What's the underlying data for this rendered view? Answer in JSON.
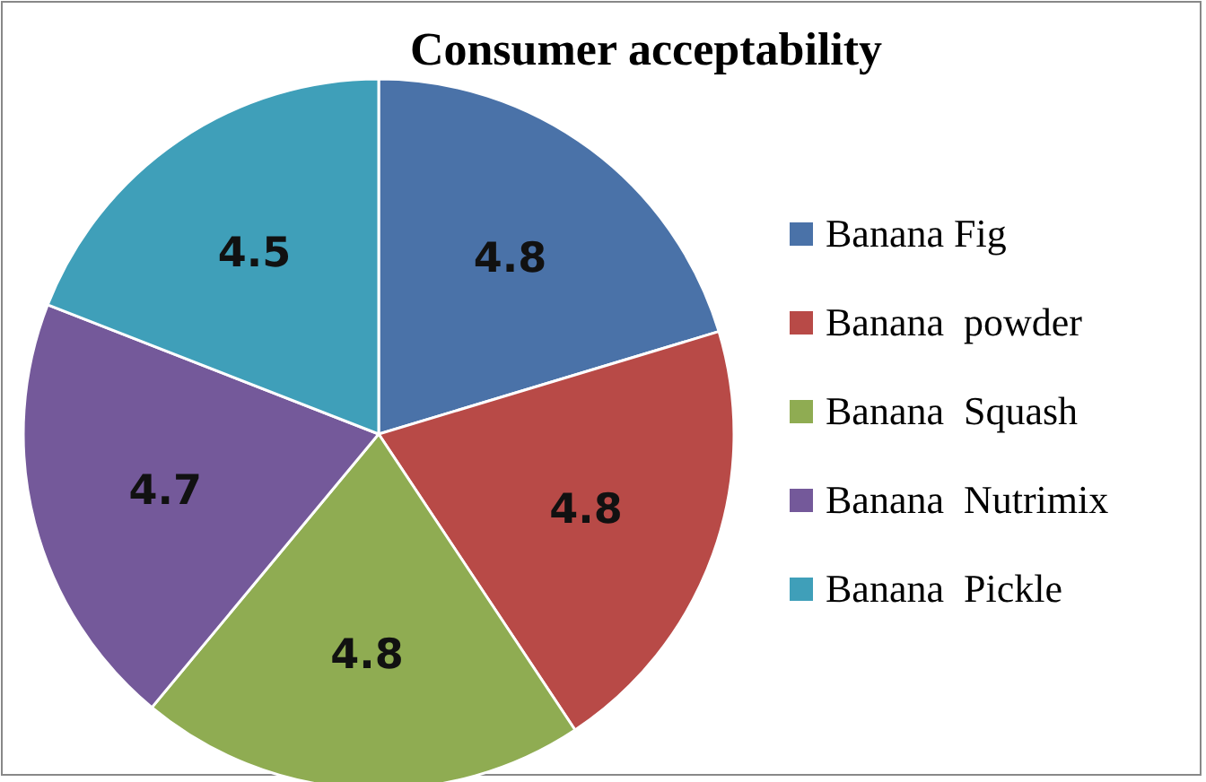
{
  "chart_data": {
    "type": "pie",
    "title": "Consumer acceptability",
    "categories": [
      "Banana Fig",
      "Banana  powder",
      "Banana  Squash",
      "Banana  Nutrimix",
      "Banana  Pickle"
    ],
    "values": [
      4.8,
      4.8,
      4.8,
      4.7,
      4.5
    ],
    "colors": [
      "#4a72a8",
      "#b84a47",
      "#8fac52",
      "#74599a",
      "#3f9fb9"
    ],
    "data_labels": true,
    "legend": "right"
  }
}
